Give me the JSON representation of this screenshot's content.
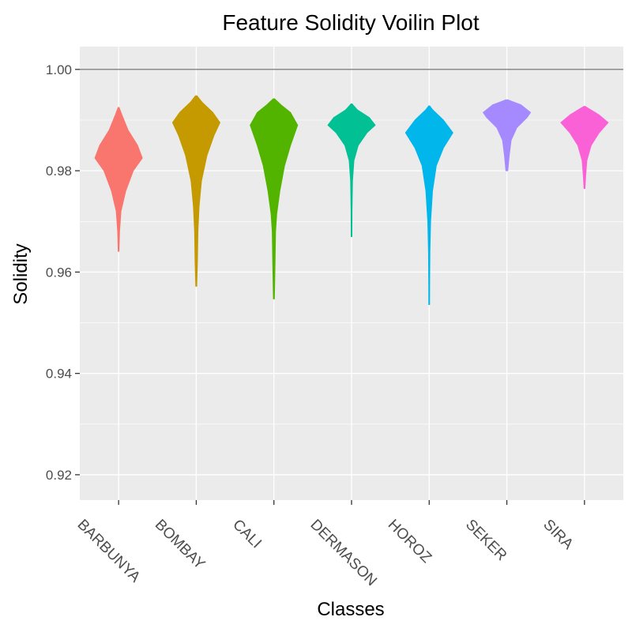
{
  "chart_data": {
    "type": "violin",
    "title": "Feature Solidity Voilin Plot",
    "xlabel": "Classes",
    "ylabel": "Solidity",
    "ylim": [
      0.915,
      1.0045
    ],
    "yticks": [
      0.92,
      0.94,
      0.96,
      0.98,
      1.0
    ],
    "ytick_labels": [
      "0.92",
      "0.94",
      "0.96",
      "0.98",
      "1.00"
    ],
    "hline": 1.0,
    "grid": true,
    "legend": "none",
    "categories": [
      "BARBUNYA",
      "BOMBAY",
      "CALI",
      "DERMASON",
      "HOROZ",
      "SEKER",
      "SIRA"
    ],
    "series": [
      {
        "color": "#F8766D",
        "min": 0.9641,
        "max": 0.9925,
        "profile": [
          [
            0.9641,
            0.01
          ],
          [
            0.968,
            0.04
          ],
          [
            0.972,
            0.1
          ],
          [
            0.976,
            0.3
          ],
          [
            0.98,
            0.62
          ],
          [
            0.9825,
            1.0
          ],
          [
            0.985,
            0.8
          ],
          [
            0.988,
            0.4
          ],
          [
            0.991,
            0.14
          ],
          [
            0.9925,
            0.02
          ]
        ]
      },
      {
        "color": "#C49A00",
        "min": 0.9572,
        "max": 0.9948,
        "profile": [
          [
            0.9572,
            0.02
          ],
          [
            0.962,
            0.05
          ],
          [
            0.968,
            0.07
          ],
          [
            0.973,
            0.12
          ],
          [
            0.978,
            0.22
          ],
          [
            0.983,
            0.45
          ],
          [
            0.987,
            0.75
          ],
          [
            0.9895,
            1.0
          ],
          [
            0.9915,
            0.7
          ],
          [
            0.9935,
            0.25
          ],
          [
            0.9948,
            0.03
          ]
        ]
      },
      {
        "color": "#53B400",
        "min": 0.9547,
        "max": 0.9942,
        "profile": [
          [
            0.9547,
            0.02
          ],
          [
            0.962,
            0.05
          ],
          [
            0.968,
            0.07
          ],
          [
            0.9715,
            0.12
          ],
          [
            0.976,
            0.25
          ],
          [
            0.981,
            0.45
          ],
          [
            0.985,
            0.7
          ],
          [
            0.989,
            1.0
          ],
          [
            0.9915,
            0.7
          ],
          [
            0.993,
            0.3
          ],
          [
            0.9942,
            0.03
          ]
        ]
      },
      {
        "color": "#00C094",
        "min": 0.967,
        "max": 0.9932,
        "profile": [
          [
            0.967,
            0.01
          ],
          [
            0.972,
            0.02
          ],
          [
            0.978,
            0.04
          ],
          [
            0.982,
            0.1
          ],
          [
            0.985,
            0.28
          ],
          [
            0.9875,
            0.65
          ],
          [
            0.989,
            1.0
          ],
          [
            0.9905,
            0.75
          ],
          [
            0.992,
            0.25
          ],
          [
            0.9932,
            0.02
          ]
        ]
      },
      {
        "color": "#00B6EB",
        "min": 0.9536,
        "max": 0.9928,
        "profile": [
          [
            0.9536,
            0.01
          ],
          [
            0.958,
            0.02
          ],
          [
            0.964,
            0.03
          ],
          [
            0.97,
            0.06
          ],
          [
            0.976,
            0.14
          ],
          [
            0.981,
            0.3
          ],
          [
            0.9845,
            0.6
          ],
          [
            0.9875,
            1.0
          ],
          [
            0.99,
            0.6
          ],
          [
            0.992,
            0.15
          ],
          [
            0.9928,
            0.02
          ]
        ]
      },
      {
        "color": "#A58AFF",
        "min": 0.98,
        "max": 0.994,
        "profile": [
          [
            0.98,
            0.04
          ],
          [
            0.983,
            0.1
          ],
          [
            0.986,
            0.18
          ],
          [
            0.9885,
            0.42
          ],
          [
            0.9905,
            0.85
          ],
          [
            0.9915,
            1.0
          ],
          [
            0.993,
            0.6
          ],
          [
            0.994,
            0.04
          ]
        ]
      },
      {
        "color": "#FB61D7",
        "min": 0.9765,
        "max": 0.9927,
        "profile": [
          [
            0.9765,
            0.02
          ],
          [
            0.979,
            0.05
          ],
          [
            0.982,
            0.1
          ],
          [
            0.985,
            0.28
          ],
          [
            0.9875,
            0.62
          ],
          [
            0.9895,
            1.0
          ],
          [
            0.991,
            0.62
          ],
          [
            0.9927,
            0.03
          ]
        ]
      }
    ]
  }
}
